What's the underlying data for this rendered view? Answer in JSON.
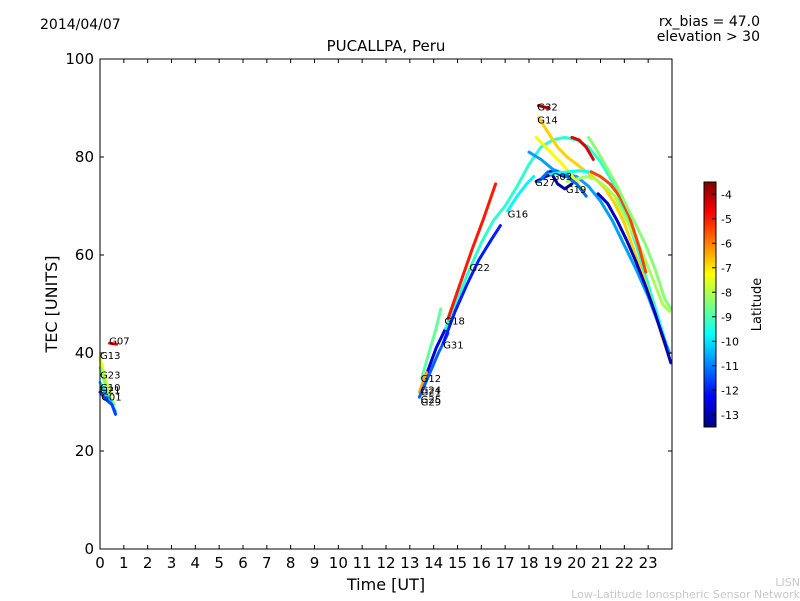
{
  "header": {
    "date": "2014/04/07",
    "rx_bias": "rx_bias = 47.0",
    "elevation": "elevation > 30",
    "title": "PUCALLPA, Peru"
  },
  "credits": {
    "line1": "LISN",
    "line2": "Low-Latitude Ionospheric Sensor Network"
  },
  "chart_data": {
    "type": "scatter",
    "title": "PUCALLPA, Peru",
    "xlabel": "Time [UT]",
    "ylabel": "TEC [UNITS]",
    "xlim": [
      0,
      24
    ],
    "ylim": [
      0,
      100
    ],
    "x_ticks": [
      0,
      1,
      2,
      3,
      4,
      5,
      6,
      7,
      8,
      9,
      10,
      11,
      12,
      13,
      14,
      15,
      16,
      17,
      18,
      19,
      20,
      21,
      22,
      23
    ],
    "y_ticks": [
      0,
      20,
      40,
      60,
      80,
      100
    ],
    "colorbar": {
      "label": "Latitude",
      "range": [
        -13.5,
        -3.5
      ],
      "ticks": [
        -13,
        -12,
        -11,
        -10,
        -9,
        -8,
        -7,
        -6,
        -5,
        -4
      ],
      "colormap": [
        "#00007f",
        "#0000ff",
        "#007fff",
        "#00ffff",
        "#7fff7f",
        "#ffff00",
        "#ff7f00",
        "#ff0000",
        "#7f0000"
      ]
    },
    "series": [
      {
        "name": "G07",
        "lat": -4.8,
        "points": [
          [
            0.4,
            42.0
          ],
          [
            0.7,
            41.8
          ]
        ]
      },
      {
        "name": "G13",
        "lat": -7.5,
        "points": [
          [
            0.0,
            39.0
          ],
          [
            0.15,
            36.0
          ],
          [
            0.3,
            33.5
          ],
          [
            0.5,
            31.5
          ]
        ]
      },
      {
        "name": "G23",
        "lat": -8.5,
        "points": [
          [
            0.0,
            37.0
          ],
          [
            0.2,
            34.0
          ],
          [
            0.4,
            31.0
          ],
          [
            0.6,
            29.5
          ]
        ]
      },
      {
        "name": "G10",
        "lat": -10.2,
        "points": [
          [
            0.0,
            34.0
          ],
          [
            0.25,
            31.5
          ],
          [
            0.45,
            30.0
          ],
          [
            0.65,
            28.0
          ]
        ]
      },
      {
        "name": "G01",
        "lat": -11.6,
        "points": [
          [
            0.0,
            32.0
          ],
          [
            0.25,
            30.5
          ],
          [
            0.5,
            29.5
          ],
          [
            0.65,
            27.5
          ]
        ]
      },
      {
        "name": "G12",
        "lat": -8.8,
        "points": [
          [
            13.5,
            35.0
          ],
          [
            13.8,
            40.0
          ],
          [
            14.1,
            45.0
          ],
          [
            14.3,
            49.0
          ]
        ]
      },
      {
        "name": "G24",
        "lat": -12.6,
        "points": [
          [
            13.5,
            33.0
          ],
          [
            13.8,
            37.0
          ],
          [
            14.1,
            41.0
          ],
          [
            14.5,
            45.0
          ]
        ]
      },
      {
        "name": "G21",
        "lat": -6.4,
        "points": [
          [
            13.4,
            32.0
          ],
          [
            13.7,
            36.0
          ]
        ]
      },
      {
        "name": "G29",
        "lat": -11.3,
        "points": [
          [
            13.4,
            31.0
          ],
          [
            13.8,
            35.5
          ],
          [
            14.2,
            40.0
          ],
          [
            14.6,
            44.0
          ]
        ]
      },
      {
        "name": "G18",
        "lat": -9.3,
        "points": [
          [
            14.5,
            45.0
          ],
          [
            15.0,
            51.0
          ],
          [
            15.5,
            57.0
          ],
          [
            16.0,
            62.5
          ],
          [
            16.5,
            67.0
          ],
          [
            17.0,
            70.0
          ],
          [
            17.5,
            74.0
          ],
          [
            18.0,
            78.5
          ],
          [
            18.5,
            82.0
          ],
          [
            19.0,
            83.5
          ],
          [
            19.5,
            84.0
          ],
          [
            20.0,
            83.5
          ],
          [
            20.5,
            82.0
          ],
          [
            21.0,
            79.0
          ],
          [
            21.5,
            75.0
          ],
          [
            22.0,
            69.0
          ],
          [
            22.5,
            62.0
          ],
          [
            23.0,
            54.0
          ],
          [
            23.5,
            46.0
          ],
          [
            23.8,
            41.0
          ]
        ]
      },
      {
        "name": "G31",
        "lat": -12.0,
        "points": [
          [
            14.4,
            42.0
          ],
          [
            14.9,
            48.5
          ],
          [
            15.4,
            54.0
          ],
          [
            15.9,
            59.0
          ],
          [
            16.4,
            63.0
          ],
          [
            16.8,
            66.0
          ]
        ]
      },
      {
        "name": "G22",
        "lat": -5.0,
        "points": [
          [
            14.6,
            47.0
          ],
          [
            15.1,
            54.0
          ],
          [
            15.6,
            61.0
          ],
          [
            16.1,
            67.5
          ],
          [
            16.6,
            74.5
          ]
        ]
      },
      {
        "name": "G16",
        "lat": -9.8,
        "points": [
          [
            17.1,
            69.0
          ],
          [
            17.5,
            72.0
          ],
          [
            17.9,
            74.5
          ],
          [
            18.2,
            76.0
          ]
        ]
      },
      {
        "name": "G27",
        "lat": -12.8,
        "points": [
          [
            18.3,
            75.0
          ],
          [
            18.7,
            76.0
          ],
          [
            19.1,
            76.8
          ],
          [
            19.5,
            76.0
          ]
        ]
      },
      {
        "name": "G32",
        "lat": -4.0,
        "points": [
          [
            18.4,
            90.5
          ],
          [
            18.8,
            90.0
          ]
        ]
      },
      {
        "name": "G14",
        "lat": -6.8,
        "points": [
          [
            18.4,
            88.0
          ],
          [
            18.8,
            85.0
          ],
          [
            19.2,
            82.0
          ],
          [
            19.6,
            80.0
          ],
          [
            20.0,
            78.5
          ],
          [
            20.4,
            77.0
          ],
          [
            20.8,
            75.5
          ],
          [
            21.2,
            73.5
          ],
          [
            21.6,
            70.5
          ],
          [
            22.0,
            66.5
          ],
          [
            22.4,
            61.0
          ],
          [
            22.8,
            55.5
          ],
          [
            23.2,
            49.5
          ],
          [
            23.6,
            43.0
          ],
          [
            23.9,
            39.0
          ]
        ]
      },
      {
        "name": "G03",
        "lat": -10.7,
        "points": [
          [
            18.0,
            81.0
          ],
          [
            18.5,
            79.5
          ],
          [
            19.0,
            77.5
          ],
          [
            19.5,
            76.5
          ],
          [
            20.0,
            76.0
          ],
          [
            20.5,
            74.0
          ],
          [
            21.0,
            71.0
          ],
          [
            21.5,
            67.0
          ],
          [
            22.0,
            62.0
          ],
          [
            22.5,
            57.0
          ],
          [
            23.0,
            51.5
          ],
          [
            23.5,
            45.0
          ],
          [
            23.9,
            40.0
          ]
        ]
      },
      {
        "name": "G19",
        "lat": -8.1,
        "points": [
          [
            19.6,
            75.0
          ],
          [
            20.0,
            75.5
          ],
          [
            20.4,
            76.0
          ],
          [
            20.8,
            75.5
          ],
          [
            21.2,
            74.0
          ],
          [
            21.6,
            72.0
          ],
          [
            22.0,
            68.0
          ],
          [
            22.4,
            64.0
          ],
          [
            22.8,
            60.0
          ],
          [
            23.2,
            55.0
          ],
          [
            23.6,
            50.0
          ],
          [
            23.9,
            48.5
          ]
        ]
      },
      {
        "name": "",
        "lat": -12.9,
        "points": [
          [
            20.9,
            72.5
          ],
          [
            21.3,
            70.5
          ],
          [
            21.7,
            67.0
          ],
          [
            22.1,
            63.0
          ],
          [
            22.5,
            58.5
          ],
          [
            22.9,
            53.5
          ],
          [
            23.3,
            48.0
          ],
          [
            23.7,
            42.0
          ],
          [
            23.95,
            38.0
          ]
        ]
      },
      {
        "name": "",
        "lat": -5.4,
        "points": [
          [
            20.6,
            77.0
          ],
          [
            21.0,
            76.0
          ],
          [
            21.4,
            74.5
          ],
          [
            21.8,
            72.0
          ],
          [
            22.2,
            68.0
          ],
          [
            22.6,
            62.0
          ],
          [
            22.9,
            56.5
          ]
        ]
      },
      {
        "name": "",
        "lat": -4.4,
        "points": [
          [
            19.8,
            84.0
          ],
          [
            20.1,
            83.5
          ],
          [
            20.4,
            82.0
          ],
          [
            20.7,
            79.5
          ]
        ]
      },
      {
        "name": "",
        "lat": -7.2,
        "points": [
          [
            18.3,
            84.0
          ],
          [
            18.7,
            82.0
          ],
          [
            19.1,
            80.0
          ],
          [
            19.5,
            78.0
          ],
          [
            19.9,
            75.5
          ],
          [
            20.3,
            73.0
          ]
        ]
      },
      {
        "name": "",
        "lat": -8.4,
        "points": [
          [
            20.5,
            84.0
          ],
          [
            20.9,
            81.0
          ],
          [
            21.3,
            77.5
          ],
          [
            21.7,
            74.0
          ],
          [
            22.1,
            70.0
          ],
          [
            22.5,
            66.0
          ],
          [
            22.9,
            62.0
          ],
          [
            23.3,
            57.0
          ],
          [
            23.7,
            51.0
          ],
          [
            23.95,
            49.0
          ]
        ]
      },
      {
        "name": "",
        "lat": -11.2,
        "points": [
          [
            18.4,
            75.0
          ],
          [
            18.8,
            77.0
          ],
          [
            19.2,
            77.0
          ],
          [
            19.6,
            76.0
          ],
          [
            20.0,
            74.5
          ],
          [
            20.4,
            72.0
          ]
        ]
      },
      {
        "name": "",
        "lat": -13.1,
        "points": [
          [
            18.9,
            77.0
          ],
          [
            19.2,
            74.5
          ],
          [
            19.5,
            73.5
          ],
          [
            19.8,
            74.5
          ]
        ]
      },
      {
        "name": "",
        "lat": -9.6,
        "points": [
          [
            18.9,
            76.5
          ],
          [
            19.3,
            76.8
          ],
          [
            19.7,
            77.0
          ],
          [
            20.1,
            77.2
          ],
          [
            20.5,
            77.0
          ]
        ]
      }
    ],
    "label_positions": [
      {
        "text": "G07",
        "x": 0.38,
        "y": 42.5
      },
      {
        "text": "G13",
        "x": 0.0,
        "y": 39.5
      },
      {
        "text": "G23",
        "x": 0.0,
        "y": 35.5
      },
      {
        "text": "G10",
        "x": 0.0,
        "y": 33.0
      },
      {
        "text": "G21",
        "x": 0.0,
        "y": 32.5
      },
      {
        "text": "G01",
        "x": 0.05,
        "y": 31.0
      },
      {
        "text": "G12",
        "x": 13.45,
        "y": 34.8
      },
      {
        "text": "G24",
        "x": 13.45,
        "y": 32.5
      },
      {
        "text": "G21",
        "x": 13.45,
        "y": 32.0
      },
      {
        "text": "G25",
        "x": 13.45,
        "y": 30.5
      },
      {
        "text": "G29",
        "x": 13.45,
        "y": 30.0
      },
      {
        "text": "G18",
        "x": 14.45,
        "y": 46.5
      },
      {
        "text": "G31",
        "x": 14.4,
        "y": 41.6
      },
      {
        "text": "G22",
        "x": 15.5,
        "y": 57.4
      },
      {
        "text": "G16",
        "x": 17.1,
        "y": 68.4
      },
      {
        "text": "G27",
        "x": 18.25,
        "y": 74.8
      },
      {
        "text": "G03",
        "x": 18.95,
        "y": 76.0
      },
      {
        "text": "G19",
        "x": 19.55,
        "y": 73.4
      },
      {
        "text": "G32",
        "x": 18.35,
        "y": 90.2
      },
      {
        "text": "G14",
        "x": 18.35,
        "y": 87.6
      }
    ]
  }
}
